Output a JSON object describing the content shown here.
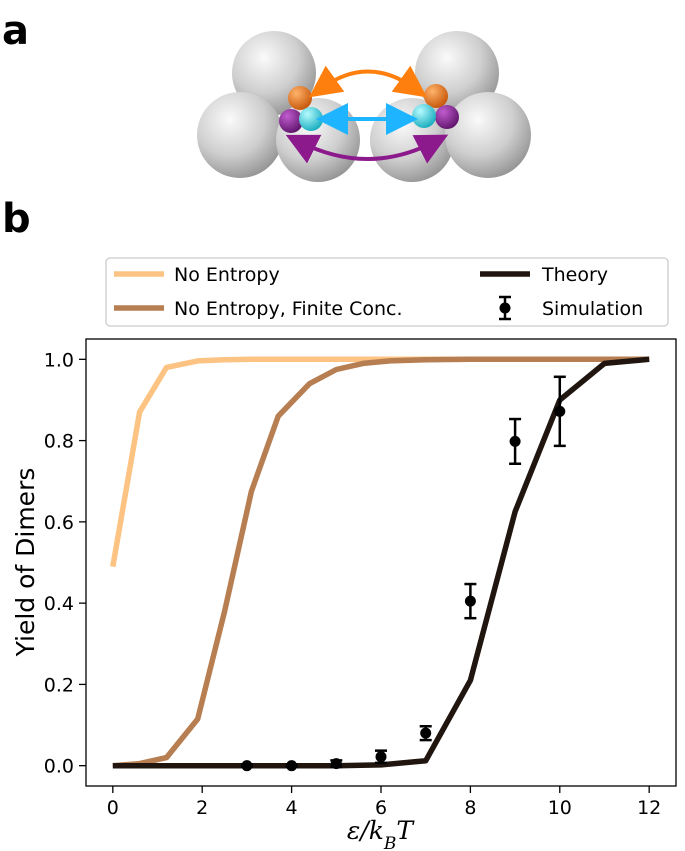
{
  "panels": {
    "a": "a",
    "b": "b"
  },
  "illustration": {
    "big_sphere_color": "#d4d4d4",
    "arrow_colors": {
      "top": "#ff7f0e",
      "middle": "#1fb4ff",
      "bottom": "#8c1a8c"
    },
    "patch_colors": {
      "orange": "#e8630a",
      "cyan": "#1ccfe0",
      "purple": "#7a1f86"
    }
  },
  "legend": {
    "no_entropy": "No Entropy",
    "no_entropy_finite": "No Entropy, Finite Conc.",
    "theory": "Theory",
    "simulation": "Simulation"
  },
  "chart_data": {
    "type": "line",
    "xlabel": "ε/k_BT",
    "ylabel": "Yield of Dimers",
    "xlim": [
      -0.6,
      12.6
    ],
    "ylim": [
      -0.05,
      1.05
    ],
    "xticks": [
      "0",
      "2",
      "4",
      "6",
      "8",
      "10",
      "12"
    ],
    "yticks": [
      "0.0",
      "0.2",
      "0.4",
      "0.6",
      "0.8",
      "1.0"
    ],
    "grid": false,
    "legend_position": "top, above plot",
    "series": [
      {
        "name": "No Entropy",
        "color": "#fcc383",
        "x": [
          0,
          0.6,
          1.2,
          1.9,
          2.5,
          3.1,
          4,
          6,
          8,
          10,
          12
        ],
        "y": [
          0.49,
          0.87,
          0.98,
          0.996,
          0.999,
          1.0,
          1.0,
          1.0,
          1.0,
          1.0,
          1.0
        ]
      },
      {
        "name": "No Entropy, Finite Conc.",
        "color": "#b77e52",
        "x": [
          0,
          0.6,
          1.2,
          1.9,
          2.5,
          3.1,
          3.7,
          4.4,
          5.0,
          5.6,
          6.2,
          7,
          8,
          10,
          12
        ],
        "y": [
          0.0,
          0.005,
          0.02,
          0.115,
          0.38,
          0.675,
          0.86,
          0.94,
          0.975,
          0.99,
          0.996,
          0.999,
          1.0,
          1.0,
          1.0
        ]
      },
      {
        "name": "Theory",
        "color": "#20160f",
        "x": [
          0,
          1,
          2,
          3,
          4,
          5,
          6,
          7,
          8,
          9,
          10,
          11,
          12
        ],
        "y": [
          0.0,
          0.0,
          0.0,
          0.0,
          0.0,
          0.0,
          0.002,
          0.012,
          0.21,
          0.625,
          0.9,
          0.99,
          1.0
        ]
      }
    ],
    "simulation": {
      "name": "Simulation",
      "color": "#000000",
      "x": [
        3,
        4,
        5,
        6,
        7,
        8,
        9,
        10
      ],
      "y": [
        0.0,
        0.0,
        0.005,
        0.022,
        0.08,
        0.405,
        0.798,
        0.872
      ],
      "err": [
        0.003,
        0.003,
        0.008,
        0.015,
        0.017,
        0.042,
        0.055,
        0.085
      ]
    }
  }
}
